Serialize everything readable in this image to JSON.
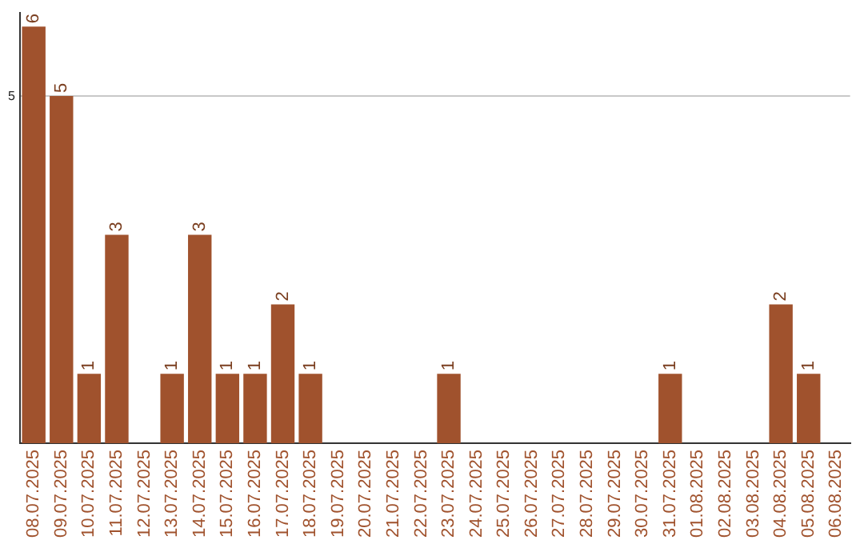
{
  "chart_data": {
    "type": "bar",
    "categories": [
      "08.07.2025",
      "09.07.2025",
      "10.07.2025",
      "11.07.2025",
      "12.07.2025",
      "13.07.2025",
      "14.07.2025",
      "15.07.2025",
      "16.07.2025",
      "17.07.2025",
      "18.07.2025",
      "19.07.2025",
      "20.07.2025",
      "21.07.2025",
      "22.07.2025",
      "23.07.2025",
      "24.07.2025",
      "25.07.2025",
      "26.07.2025",
      "27.07.2025",
      "28.07.2025",
      "29.07.2025",
      "30.07.2025",
      "31.07.2025",
      "01.08.2025",
      "02.08.2025",
      "03.08.2025",
      "04.08.2025",
      "05.08.2025",
      "06.08.2025"
    ],
    "values": [
      6,
      5,
      1,
      3,
      0,
      1,
      3,
      1,
      1,
      2,
      1,
      0,
      0,
      0,
      0,
      1,
      0,
      0,
      0,
      0,
      0,
      0,
      0,
      1,
      0,
      0,
      0,
      2,
      1,
      0
    ],
    "value_labels": [
      "6",
      "5",
      "1",
      "3",
      null,
      "1",
      "3",
      "1",
      "1",
      "2",
      "1",
      null,
      null,
      null,
      null,
      "1",
      null,
      null,
      null,
      null,
      null,
      null,
      null,
      "1",
      null,
      null,
      null,
      "2",
      "1",
      null
    ],
    "color": "#a0522d",
    "ylim": [
      0,
      6.2
    ],
    "yticks": [
      5
    ],
    "grid": "y",
    "legend": false
  }
}
